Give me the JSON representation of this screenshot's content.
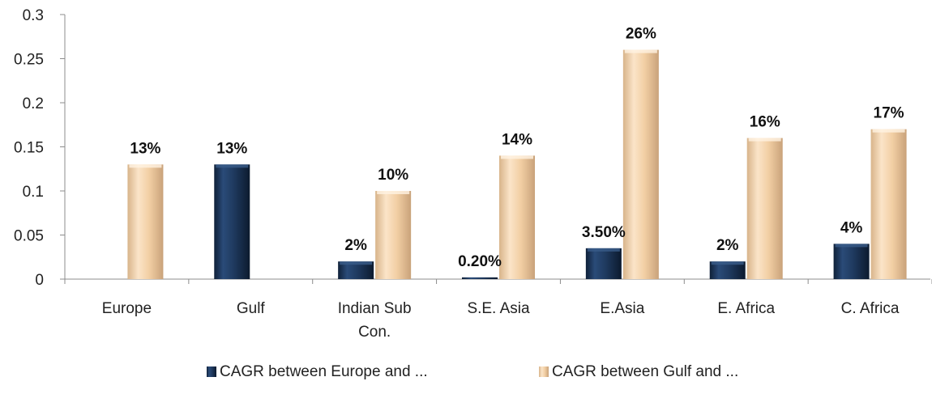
{
  "chart_data": {
    "type": "bar",
    "title": "",
    "xlabel": "",
    "ylabel": "",
    "ylim": [
      0,
      0.3
    ],
    "yticks": [
      0,
      0.05,
      0.1,
      0.15,
      0.2,
      0.25,
      0.3
    ],
    "ytick_labels": [
      "0",
      "0.05",
      "0.1",
      "0.15",
      "0.2",
      "0.25",
      "0.3"
    ],
    "grid": false,
    "legend_position": "bottom",
    "categories": [
      [
        "Europe"
      ],
      [
        "Gulf"
      ],
      [
        "Indian Sub",
        "Con."
      ],
      [
        "S.E. Asia"
      ],
      [
        "E.Asia"
      ],
      [
        "E. Africa"
      ],
      [
        "C. Africa"
      ]
    ],
    "series": [
      {
        "name": "CAGR between  Europe and ...",
        "color": "#1f3a5f",
        "values": [
          null,
          0.13,
          0.02,
          0.002,
          0.035,
          0.02,
          0.04
        ],
        "labels": [
          "",
          "13%",
          "2%",
          "0.20%",
          "3.50%",
          "2%",
          "4%"
        ]
      },
      {
        "name": "CAGR between  Gulf and ...",
        "color": "#f2cfa4",
        "values": [
          0.13,
          null,
          0.1,
          0.14,
          0.26,
          0.16,
          0.17
        ],
        "labels": [
          "13%",
          "",
          "10%",
          "14%",
          "26%",
          "16%",
          "17%"
        ]
      }
    ]
  }
}
